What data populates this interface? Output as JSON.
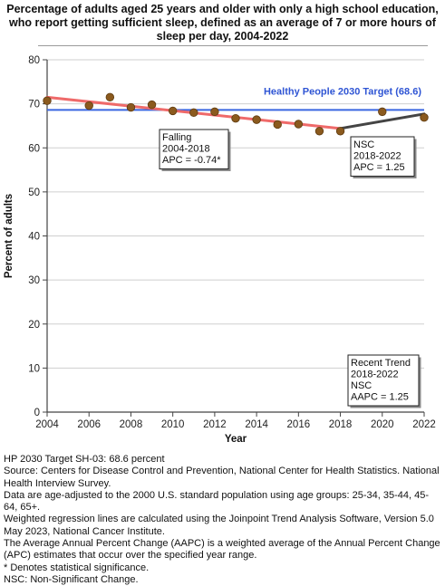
{
  "title": "Percentage of adults aged 25 years and older with only a high school education, who report getting sufficient sleep, defined as an average of 7 or more hours of sleep per day, 2004-2022",
  "notes": [
    "HP 2030 Target SH-03: 68.6 percent",
    "Source: Centers for Disease Control and Prevention, National Center for Health Statistics. National Health Interview Survey.",
    "Data are age-adjusted to the 2000 U.S. standard population using age groups: 25-34, 35-44, 45-64, 65+.",
    "Weighted regression lines are calculated using the Joinpoint Trend Analysis Software, Version 5.0 May 2023, National Cancer Institute.",
    "The Average Annual Percent Change (AAPC) is a weighted average of the Annual Percent Change (APC) estimates that occur over the specified year range.",
    "* Denotes statistical significance.",
    "NSC: Non-Significant Change."
  ],
  "colors": {
    "target_line": "#3a66e0",
    "falling_line": "#ef6a6a",
    "nsc_line": "#444444",
    "points": "#8b5a1e",
    "grid": "#cfcfcf",
    "axis": "#444444"
  },
  "chart_data": {
    "type": "scatter",
    "xlabel": "Year",
    "ylabel": "Percent of adults",
    "xlim": [
      2004,
      2022
    ],
    "ylim": [
      0,
      80
    ],
    "x_ticks": [
      "2004",
      "2006",
      "2008",
      "2010",
      "2012",
      "2014",
      "2016",
      "2018",
      "2020",
      "2022"
    ],
    "y_ticks": [
      "0",
      "10",
      "20",
      "30",
      "40",
      "50",
      "60",
      "70",
      "80"
    ],
    "grid": "horizontal",
    "points": [
      {
        "x": 2004,
        "y": 70.7
      },
      {
        "x": 2006,
        "y": 69.6
      },
      {
        "x": 2007,
        "y": 71.5
      },
      {
        "x": 2008,
        "y": 69.2
      },
      {
        "x": 2009,
        "y": 69.8
      },
      {
        "x": 2010,
        "y": 68.4
      },
      {
        "x": 2011,
        "y": 68.0
      },
      {
        "x": 2012,
        "y": 68.2
      },
      {
        "x": 2013,
        "y": 66.7
      },
      {
        "x": 2014,
        "y": 66.4
      },
      {
        "x": 2015,
        "y": 65.3
      },
      {
        "x": 2016,
        "y": 65.4
      },
      {
        "x": 2017,
        "y": 63.8
      },
      {
        "x": 2018,
        "y": 63.8
      },
      {
        "x": 2020,
        "y": 68.2
      },
      {
        "x": 2022,
        "y": 66.9
      }
    ],
    "target": {
      "value": 68.6,
      "label": "Healthy People 2030 Target (68.6)"
    },
    "segments": [
      {
        "kind": "falling",
        "x": [
          2004,
          2018
        ],
        "y": [
          71.5,
          64.4
        ]
      },
      {
        "kind": "nsc",
        "x": [
          2018,
          2022
        ],
        "y": [
          64.4,
          67.7
        ]
      }
    ],
    "annotations": {
      "falling": [
        "Falling",
        "2004-2018",
        "APC = -0.74*"
      ],
      "nsc": [
        "NSC",
        "2018-2022",
        "APC =  1.25"
      ],
      "recent": [
        "Recent Trend",
        "2018-2022",
        "NSC",
        "AAPC =  1.25"
      ]
    }
  }
}
